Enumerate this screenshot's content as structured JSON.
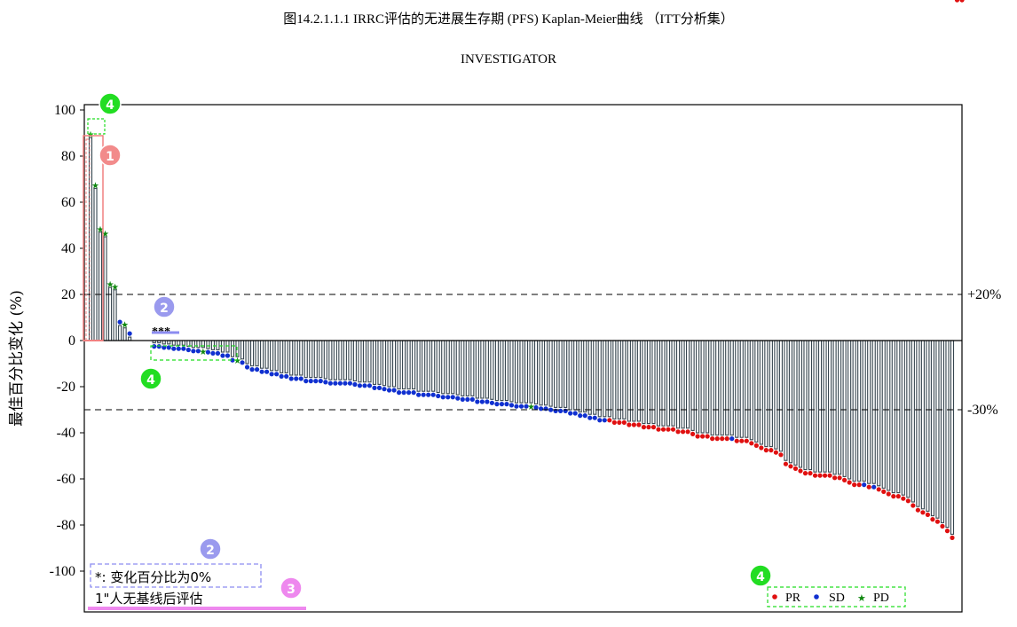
{
  "page": {
    "title": "图14.2.1.1.1 IRRC评估的无进展生存期 (PFS) Kaplan-Meier曲线 （ITT分析集）",
    "subtitle": "INVESTIGATOR"
  },
  "colors": {
    "bar_fill": "#36454f",
    "PR": "#e01010",
    "SD": "#1030d0",
    "PD": "#118811",
    "callout_1": "#f28b8b",
    "callout_2": "#9a9aee",
    "callout_3": "#ee88ee",
    "callout_4": "#22dd22"
  },
  "annotations": {
    "callout_1": "1",
    "callout_2": "2",
    "callout_3": "3",
    "callout_4": "4",
    "asterisks": "***",
    "footnote_1": "*:  变化百分比为0%",
    "footnote_2": "1\"人无基线后评估"
  },
  "chart_data": {
    "type": "bar",
    "ylabel": "最佳百分比变化 (%)",
    "xlabel": "",
    "ylim": [
      -117,
      102
    ],
    "yticks": [
      100,
      80,
      60,
      40,
      20,
      0,
      -20,
      -40,
      -60,
      -80,
      -100
    ],
    "grid": false,
    "reference_lines": [
      {
        "y": 20,
        "label": "+20%"
      },
      {
        "y": -30,
        "label": "-30%"
      }
    ],
    "legend": {
      "position": "bottom-right",
      "entries": [
        {
          "name": "PR",
          "marker": "dot",
          "color": "#e01010"
        },
        {
          "name": "SD",
          "marker": "dot",
          "color": "#1030d0"
        },
        {
          "name": "PD",
          "marker": "star",
          "color": "#118811"
        }
      ]
    },
    "series": [
      {
        "name": "PD",
        "values": [
          88,
          66,
          47,
          45,
          23,
          22,
          6.5,
          5.5,
          1.5,
          0,
          0,
          -1,
          -1,
          -1.5,
          -1.5,
          -2,
          -2,
          -2,
          -2.5,
          -3,
          -3,
          -3,
          -3.5,
          -4,
          -4,
          -5,
          -5,
          -7,
          -7,
          -27
        ]
      },
      {
        "name": "SD",
        "values": [
          -8,
          -10,
          -11,
          -11,
          -12,
          -12,
          -13,
          -13,
          -14,
          -14,
          -15,
          -15,
          -15,
          -16,
          -16,
          -16,
          -16,
          -16.5,
          -17,
          -17,
          -17,
          -17,
          -17,
          -17.5,
          -18,
          -18,
          -18,
          -19,
          -19,
          -19.5,
          -20,
          -20,
          -21,
          -21,
          -21,
          -21,
          -22,
          -22,
          -22,
          -22,
          -22.5,
          -23,
          -23,
          -23,
          -23.5,
          -24,
          -24,
          -24,
          -25,
          -25,
          -25,
          -25.5,
          -26,
          -26,
          -26,
          -26.5,
          -27,
          -27,
          -27,
          -27.5,
          -28,
          -28,
          -28.5,
          -29,
          -29,
          -29,
          -30,
          -30,
          -31,
          -31,
          -32,
          -32,
          -33,
          -33,
          -41,
          -61,
          -62
        ]
      },
      {
        "name": "PR",
        "values": [
          -33,
          -34,
          -34,
          -34,
          -35,
          -35,
          -35,
          -36,
          -36,
          -36,
          -37,
          -37,
          -37,
          -37,
          -38,
          -38,
          -38,
          -39,
          -40,
          -40,
          -40,
          -41,
          -41,
          -41,
          -41,
          -42,
          -42,
          -42,
          -43,
          -44,
          -45,
          -46,
          -46,
          -47,
          -48,
          -52,
          -53,
          -54,
          -55,
          -56,
          -56,
          -57,
          -57,
          -57,
          -57,
          -58,
          -58,
          -59,
          -60,
          -61,
          -61,
          -62,
          -63,
          -64,
          -65,
          -66,
          -66,
          -67,
          -68,
          -70,
          -72,
          -73,
          -74,
          -76,
          -77,
          -79,
          -81,
          -84
        ]
      }
    ],
    "bars": [
      88,
      66,
      47,
      45,
      23,
      22,
      6.5,
      5.5,
      1.5,
      0,
      0,
      0,
      0,
      -1,
      -1,
      -1.5,
      -1.5,
      -2,
      -2,
      -2,
      -2.5,
      -3,
      -3,
      -3,
      -3.5,
      -4,
      -4,
      -5,
      -5,
      -7,
      -7,
      -8,
      -10,
      -11,
      -11,
      -12,
      -12,
      -13,
      -13,
      -14,
      -14,
      -15,
      -15,
      -15,
      -16,
      -16,
      -16,
      -16,
      -16.5,
      -17,
      -17,
      -17,
      -17,
      -17,
      -17.5,
      -18,
      -18,
      -18,
      -19,
      -19,
      -19.5,
      -20,
      -20,
      -21,
      -21,
      -21,
      -21,
      -22,
      -22,
      -22,
      -22,
      -22.5,
      -23,
      -23,
      -23,
      -23.5,
      -24,
      -24,
      -24,
      -25,
      -25,
      -25,
      -25.5,
      -26,
      -26,
      -26,
      -26.5,
      -27,
      -27,
      -27,
      -27,
      -27.5,
      -28,
      -28,
      -28.5,
      -29,
      -29,
      -29,
      -30,
      -30,
      -31,
      -31,
      -32,
      -32,
      -33,
      -33,
      -33,
      -34,
      -34,
      -34,
      -35,
      -35,
      -35,
      -36,
      -36,
      -36,
      -37,
      -37,
      -37,
      -37,
      -38,
      -38,
      -38,
      -39,
      -40,
      -40,
      -40,
      -41,
      -41,
      -41,
      -41,
      -41,
      -42,
      -42,
      -42,
      -43,
      -44,
      -45,
      -46,
      -46,
      -47,
      -48,
      -52,
      -53,
      -54,
      -55,
      -56,
      -56,
      -57,
      -57,
      -57,
      -57,
      -58,
      -58,
      -59,
      -60,
      -61,
      -61,
      -61,
      -62,
      -62,
      -63,
      -64,
      -65,
      -66,
      -66,
      -67,
      -68,
      -70,
      -72,
      -73,
      -74,
      -76,
      -77,
      -79,
      -81,
      -84
    ],
    "marker_types": [
      "PD",
      "PD",
      "PD",
      "PD",
      "PD",
      "PD",
      "SD",
      "PD",
      "SD",
      "none",
      "none",
      "none",
      "none",
      "SD",
      "SD",
      "SD",
      "SD",
      "SD",
      "SD",
      "SD",
      "SD",
      "SD",
      "SD",
      "PD",
      "SD",
      "SD",
      "SD",
      "SD",
      "SD",
      "SD",
      "PD",
      "SD",
      "SD",
      "SD",
      "SD",
      "SD",
      "SD",
      "SD",
      "SD",
      "SD",
      "SD",
      "SD",
      "SD",
      "SD",
      "SD",
      "SD",
      "SD",
      "SD",
      "SD",
      "SD",
      "SD",
      "SD",
      "SD",
      "SD",
      "SD",
      "SD",
      "SD",
      "SD",
      "SD",
      "SD",
      "SD",
      "SD",
      "SD",
      "SD",
      "SD",
      "SD",
      "SD",
      "SD",
      "SD",
      "SD",
      "SD",
      "SD",
      "SD",
      "SD",
      "SD",
      "SD",
      "SD",
      "SD",
      "SD",
      "SD",
      "SD",
      "SD",
      "SD",
      "SD",
      "SD",
      "SD",
      "SD",
      "SD",
      "SD",
      "SD",
      "PD",
      "SD",
      "SD",
      "SD",
      "SD",
      "SD",
      "SD",
      "SD",
      "SD",
      "SD",
      "SD",
      "SD",
      "SD",
      "SD",
      "SD",
      "SD",
      "PR",
      "PR",
      "PR",
      "PR",
      "PR",
      "PR",
      "PR",
      "PR",
      "PR",
      "PR",
      "PR",
      "PR",
      "PR",
      "PR",
      "PR",
      "PR",
      "PR",
      "PR",
      "PR",
      "PR",
      "PR",
      "PR",
      "PR",
      "PR",
      "PR",
      "SD",
      "PR",
      "PR",
      "PR",
      "PR",
      "PR",
      "PR",
      "PR",
      "PR",
      "PR",
      "PR",
      "PR",
      "PR",
      "PR",
      "PR",
      "PR",
      "PR",
      "PR",
      "PR",
      "PR",
      "PR",
      "PR",
      "PR",
      "PR",
      "PR",
      "PR",
      "PR",
      "SD",
      "PR",
      "SD",
      "PR",
      "PR",
      "PR",
      "PR",
      "PR",
      "PR",
      "PR",
      "PR",
      "PR",
      "PR",
      "PR",
      "PR",
      "PR",
      "PR",
      "PR",
      "PR",
      "PR",
      "PR"
    ],
    "marker_offset": 4
  }
}
